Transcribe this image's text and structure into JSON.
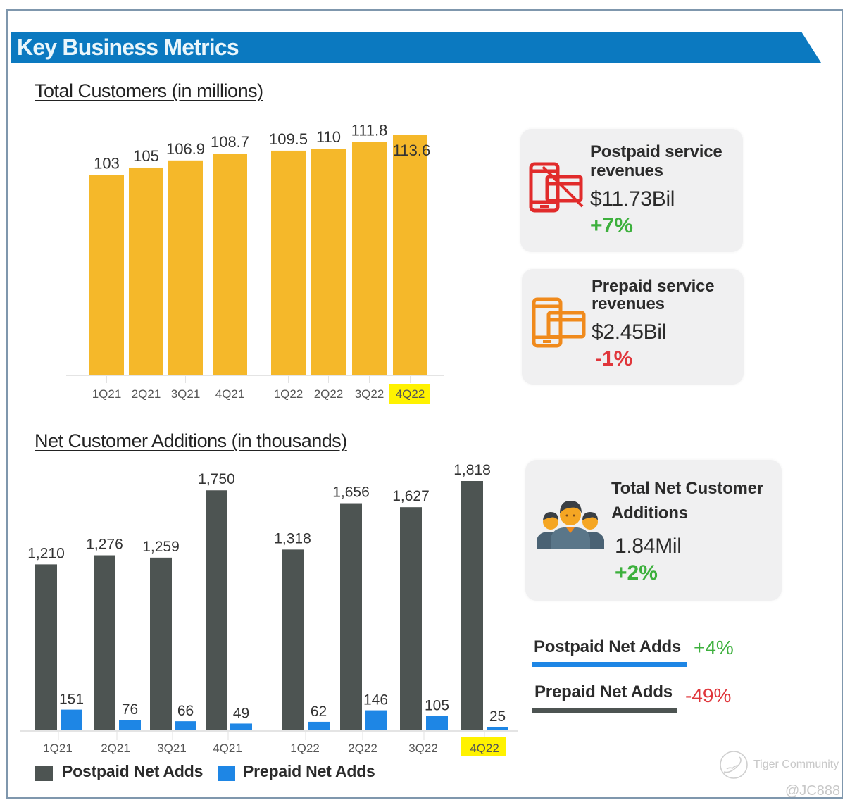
{
  "header": {
    "title": "Key Business Metrics",
    "banner_color": "#0b79c0"
  },
  "colors": {
    "customers_bar": "#f5b82a",
    "postpaid_bar": "#4d5452",
    "prepaid_bar": "#1e86e5",
    "highlight": "#fff200",
    "positive": "#3db03d",
    "negative": "#e0363b"
  },
  "chart_data": [
    {
      "type": "bar",
      "title": "Total Customers (in millions)",
      "xlabel": "",
      "ylabel": "",
      "categories": [
        "1Q21",
        "2Q21",
        "3Q21",
        "4Q21",
        "1Q22",
        "2Q22",
        "3Q22",
        "4Q22"
      ],
      "values": [
        103,
        105,
        106.9,
        108.7,
        109.5,
        110,
        111.8,
        113.6
      ],
      "data_labels": [
        "103",
        "105",
        "106.9",
        "108.7",
        "109.5",
        "110",
        "111.8",
        "113.6"
      ],
      "ylim": [
        50,
        115
      ],
      "grid": false,
      "highlighted_category": "4Q22"
    },
    {
      "type": "bar",
      "title": "Net Customer Additions (in thousands)",
      "xlabel": "",
      "ylabel": "",
      "categories": [
        "1Q21",
        "2Q21",
        "3Q21",
        "4Q21",
        "1Q22",
        "2Q22",
        "3Q22",
        "4Q22"
      ],
      "series": [
        {
          "name": "Postpaid Net Adds",
          "values": [
            1210,
            1276,
            1259,
            1750,
            1318,
            1656,
            1627,
            1818
          ],
          "data_labels": [
            "1,210",
            "1,276",
            "1,259",
            "1,750",
            "1,318",
            "1,656",
            "1,627",
            "1,818"
          ]
        },
        {
          "name": "Prepaid Net Adds",
          "values": [
            151,
            76,
            66,
            49,
            62,
            146,
            105,
            25
          ],
          "data_labels": [
            "151",
            "76",
            "66",
            "49",
            "62",
            "146",
            "105",
            "25"
          ]
        }
      ],
      "ylim": [
        0,
        1900
      ],
      "grid": false,
      "legend": "bottom-left",
      "highlighted_category": "4Q22"
    }
  ],
  "cards": {
    "postpaid": {
      "icon": "phone-card-icon",
      "title_line1": "Postpaid service",
      "title_line2": "revenues",
      "value": "$11.73Bil",
      "change": "+7%"
    },
    "prepaid": {
      "icon": "phone-card-icon",
      "title_line1": "Prepaid service",
      "title_line2": "revenues",
      "value": "$2.45Bil",
      "change": "-1%"
    },
    "net_additions": {
      "icon": "people-group-icon",
      "title_line1": "Total Net Customer",
      "title_line2": "Additions",
      "value": "1.84Mil",
      "change": "+2%"
    }
  },
  "net_adds_summary": [
    {
      "label": "Postpaid Net Adds",
      "change": "+4%"
    },
    {
      "label": "Prepaid Net Adds",
      "change": "-49%"
    }
  ],
  "watermark": {
    "brand": "Tiger Community",
    "handle": "@JC888"
  }
}
